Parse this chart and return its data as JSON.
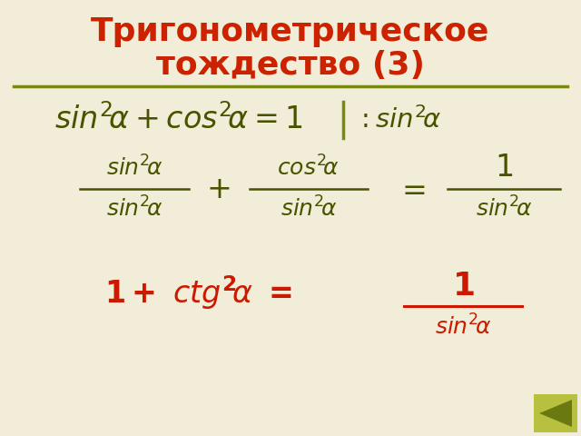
{
  "title_line1": "Тригонометрическое",
  "title_line2": "тождество (3)",
  "title_color": "#cc2200",
  "title_fontsize": 26,
  "bg_color": "#f2edd8",
  "math_color": "#4a5200",
  "red_color": "#cc1a00",
  "line_color": "#7a8a10",
  "arrow_color": "#6a7a10",
  "arrow_bg": "#b8c040"
}
